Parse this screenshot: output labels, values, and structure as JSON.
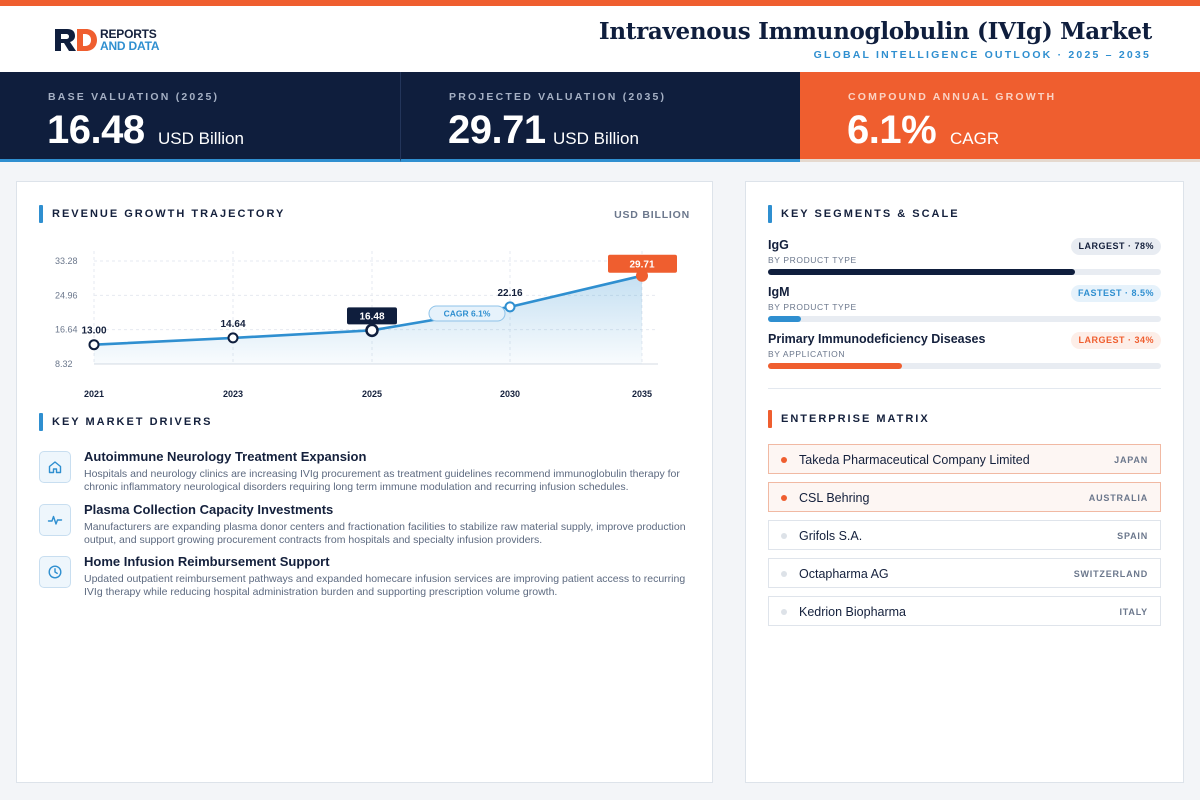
{
  "brand": {
    "line1": "REPORTS",
    "line2": "AND DATA"
  },
  "header": {
    "title": "Intravenous Immunoglobulin (IVIg) Market",
    "subtitle": "GLOBAL INTELLIGENCE OUTLOOK · 2025 – 2035"
  },
  "kpis": [
    {
      "label": "BASE VALUATION (2025)",
      "value": "16.48",
      "unit": "USD Billion"
    },
    {
      "label": "PROJECTED VALUATION (2035)",
      "value": "29.71",
      "unit": "USD Billion"
    },
    {
      "label": "COMPOUND ANNUAL GROWTH",
      "value": "6.1%",
      "unit": "CAGR"
    }
  ],
  "chart_section": {
    "title": "REVENUE GROWTH TRAJECTORY",
    "unit": "USD BILLION"
  },
  "chart_data": {
    "type": "line",
    "title": "",
    "x": [
      "2021",
      "2023",
      "2025",
      "2030",
      "2035"
    ],
    "series": [
      {
        "values": [
          13.0,
          14.64,
          16.48,
          22.16,
          29.71
        ]
      }
    ],
    "value_labels": [
      "13.00",
      "14.64",
      "16.48",
      "22.16",
      "29.71"
    ],
    "y_ticks": [
      "8.32",
      "16.64",
      "24.96",
      "33.28"
    ],
    "ylim": [
      8.32,
      33.28
    ],
    "annotation": "CAGR 6.1%",
    "grid": true,
    "fill": "area",
    "colors": {
      "line": "#2f8fd0",
      "base_point": "#0f1e3d",
      "end_point": "#ef5e2f"
    }
  },
  "drivers_section": {
    "title": "KEY MARKET DRIVERS"
  },
  "drivers": [
    {
      "icon": "home-icon",
      "title": "Autoimmune Neurology Treatment Expansion",
      "desc": "Hospitals and neurology clinics are increasing IVIg procurement as treatment guidelines recommend immunoglobulin therapy for chronic inflammatory neurological disorders requiring long term immune modulation and recurring infusion schedules."
    },
    {
      "icon": "pulse-icon",
      "title": "Plasma Collection Capacity Investments",
      "desc": "Manufacturers are expanding plasma donor centers and fractionation facilities to stabilize raw material supply, improve production output, and support growing procurement contracts from hospitals and specialty infusion providers."
    },
    {
      "icon": "clock-icon",
      "title": "Home Infusion Reimbursement Support",
      "desc": "Updated outpatient reimbursement pathways and expanded homecare infusion services are improving patient access to recurring IVIg therapy while reducing hospital administration burden and supporting prescription volume growth."
    }
  ],
  "segments_section": {
    "title": "KEY SEGMENTS & SCALE"
  },
  "segments": [
    {
      "name": "IgG",
      "sub": "BY PRODUCT TYPE",
      "badge": "LARGEST · 78%",
      "share": 0.78,
      "color": "#0f1e3d",
      "badge_bg": "#e8ecf2",
      "badge_fg": "#14203c"
    },
    {
      "name": "IgM",
      "sub": "BY PRODUCT TYPE",
      "badge": "FASTEST · 8.5%",
      "share": 0.085,
      "color": "#2f8fd0",
      "badge_bg": "#e6f2fb",
      "badge_fg": "#2f8fd0"
    },
    {
      "name": "Primary Immunodeficiency Diseases",
      "sub": "BY APPLICATION",
      "badge": "LARGEST · 34%",
      "share": 0.34,
      "color": "#ef5e2f",
      "badge_bg": "#fdeee8",
      "badge_fg": "#ef5e2f"
    }
  ],
  "enterprise_section": {
    "title": "ENTERPRISE MATRIX"
  },
  "companies": [
    {
      "name": "Takeda Pharmaceutical Company Limited",
      "country": "JAPAN",
      "highlight": true
    },
    {
      "name": "CSL Behring",
      "country": "AUSTRALIA",
      "highlight": true
    },
    {
      "name": "Grifols S.A.",
      "country": "SPAIN",
      "highlight": false
    },
    {
      "name": "Octapharma AG",
      "country": "SWITZERLAND",
      "highlight": false
    },
    {
      "name": "Kedrion Biopharma",
      "country": "ITALY",
      "highlight": false
    }
  ]
}
